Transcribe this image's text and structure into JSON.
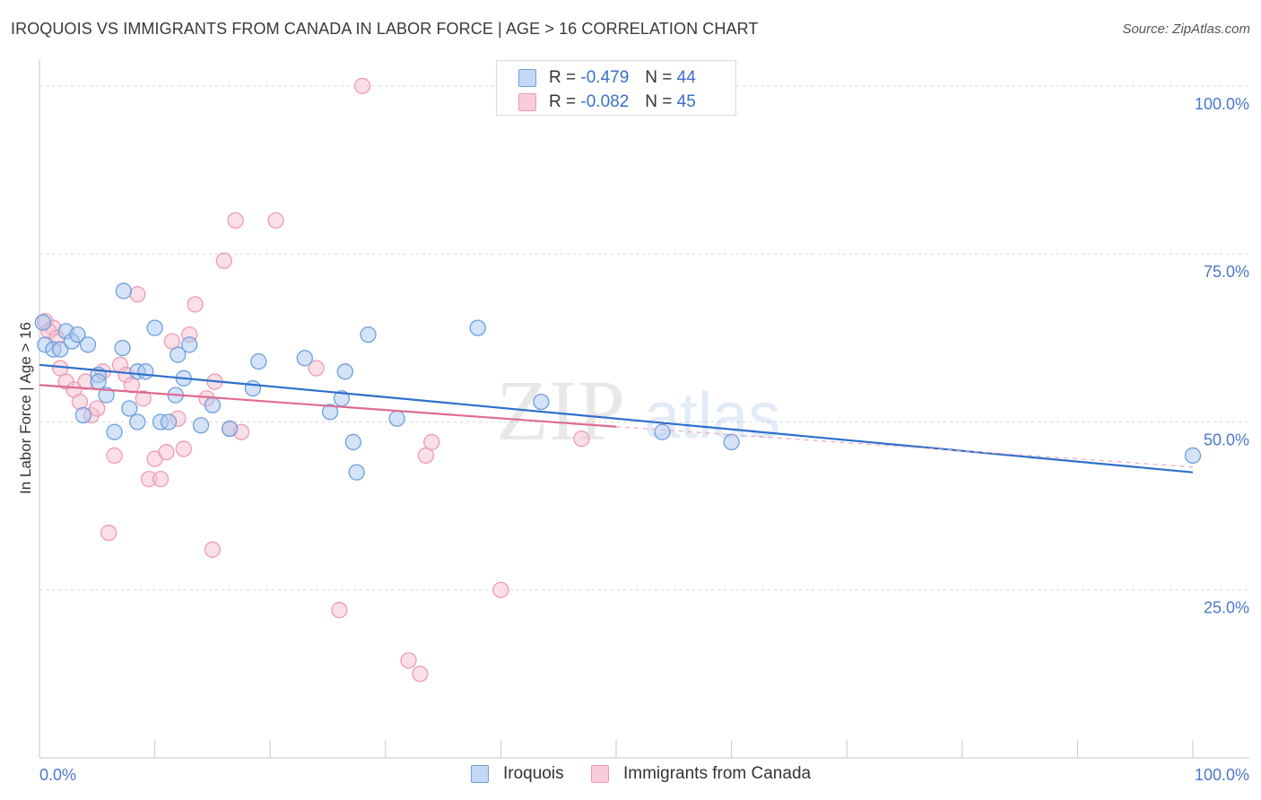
{
  "header": {
    "title": "IROQUOIS VS IMMIGRANTS FROM CANADA IN LABOR FORCE | AGE > 16 CORRELATION CHART",
    "source": "Source: ZipAtlas.com"
  },
  "legend": {
    "rows": [
      {
        "r_label": "R =",
        "r_value": "-0.479",
        "n_label": "N =",
        "n_value": "44"
      },
      {
        "r_label": "R =",
        "r_value": "-0.082",
        "n_label": "N =",
        "n_value": "45"
      }
    ]
  },
  "colors": {
    "blue_fill": "#a9c8f0",
    "blue_stroke": "#6f9fdc",
    "blue_line": "#2e6fcc",
    "pink_fill": "#f6bfcf",
    "pink_stroke": "#ee9bb4",
    "pink_line": "#e06a92",
    "tick_text": "#4a78c8",
    "grid": "#d8d8d8"
  },
  "watermark": {
    "zip": "ZIP",
    "atlas": "atlas"
  },
  "chart_data": {
    "type": "scatter",
    "title": "IROQUOIS VS IMMIGRANTS FROM CANADA IN LABOR FORCE | AGE > 16 CORRELATION CHART",
    "xlabel": "",
    "ylabel": "In Labor Force | Age > 16",
    "xlim": [
      0,
      100
    ],
    "ylim": [
      0,
      104
    ],
    "x_tick_labels": [
      "0.0%",
      "100.0%"
    ],
    "y_ticks": [
      {
        "value": 25,
        "label": "25.0%"
      },
      {
        "value": 50,
        "label": "50.0%"
      },
      {
        "value": 75,
        "label": "75.0%"
      },
      {
        "value": 100,
        "label": "100.0%"
      }
    ],
    "series": [
      {
        "name": "Iroquois",
        "r": -0.479,
        "n": 44,
        "trend": {
          "x0": 0,
          "y0": 58.5,
          "x1": 100,
          "y1": 42.5
        },
        "points": [
          [
            0.3,
            64.8
          ],
          [
            0.5,
            61.5
          ],
          [
            1.2,
            60.8
          ],
          [
            1.8,
            60.8
          ],
          [
            2.3,
            63.5
          ],
          [
            2.8,
            62
          ],
          [
            3.3,
            63
          ],
          [
            4.2,
            61.5
          ],
          [
            3.8,
            51
          ],
          [
            5.1,
            57
          ],
          [
            5.1,
            56
          ],
          [
            5.8,
            54
          ],
          [
            6.5,
            48.5
          ],
          [
            7.3,
            69.5
          ],
          [
            7.2,
            61
          ],
          [
            7.8,
            52
          ],
          [
            8.5,
            50
          ],
          [
            8.5,
            57.5
          ],
          [
            9.2,
            57.5
          ],
          [
            10,
            64
          ],
          [
            10.5,
            50
          ],
          [
            11.2,
            50
          ],
          [
            11.8,
            54
          ],
          [
            12,
            60
          ],
          [
            12.5,
            56.5
          ],
          [
            13,
            61.5
          ],
          [
            14,
            49.5
          ],
          [
            15,
            52.5
          ],
          [
            16.5,
            49
          ],
          [
            18.5,
            55
          ],
          [
            19,
            59
          ],
          [
            23,
            59.5
          ],
          [
            25.2,
            51.5
          ],
          [
            26.2,
            53.5
          ],
          [
            26.5,
            57.5
          ],
          [
            27.2,
            47
          ],
          [
            27.5,
            42.5
          ],
          [
            28.5,
            63
          ],
          [
            31,
            50.5
          ],
          [
            38,
            64
          ],
          [
            43.5,
            53
          ],
          [
            54,
            48.5
          ],
          [
            60,
            47
          ],
          [
            100,
            45
          ]
        ]
      },
      {
        "name": "Immigrants from Canada",
        "r": -0.082,
        "n": 45,
        "trend": {
          "x0": 0,
          "y0": 55.5,
          "x1": 50,
          "y1": 49.3
        },
        "trend_ext": {
          "x0": 50,
          "y0": 49.3,
          "x1": 100,
          "y1": 43.3
        },
        "points": [
          [
            0.5,
            65
          ],
          [
            1.2,
            64
          ],
          [
            1.8,
            58
          ],
          [
            2.3,
            56
          ],
          [
            3,
            54.8
          ],
          [
            3.5,
            53
          ],
          [
            4,
            56
          ],
          [
            4.5,
            51
          ],
          [
            5,
            52
          ],
          [
            5.5,
            57.5
          ],
          [
            6,
            33.5
          ],
          [
            6.5,
            45
          ],
          [
            7,
            58.5
          ],
          [
            7.5,
            57
          ],
          [
            8,
            55.5
          ],
          [
            8.5,
            69
          ],
          [
            9,
            53.5
          ],
          [
            9.5,
            41.5
          ],
          [
            10,
            44.5
          ],
          [
            10.5,
            41.5
          ],
          [
            11,
            45.5
          ],
          [
            11.5,
            62
          ],
          [
            12,
            50.5
          ],
          [
            12.5,
            46
          ],
          [
            13,
            63
          ],
          [
            13.5,
            67.5
          ],
          [
            14.5,
            53.5
          ],
          [
            15,
            31
          ],
          [
            15.2,
            56
          ],
          [
            16,
            74
          ],
          [
            16.5,
            49
          ],
          [
            17,
            80
          ],
          [
            17.5,
            48.5
          ],
          [
            20.5,
            80
          ],
          [
            24,
            58
          ],
          [
            26,
            22
          ],
          [
            28,
            100
          ],
          [
            32,
            14.5
          ],
          [
            33,
            12.5
          ],
          [
            33.5,
            45
          ],
          [
            34,
            47
          ],
          [
            40,
            25
          ],
          [
            47,
            47.5
          ],
          [
            0.8,
            63.5
          ],
          [
            1.5,
            62.5
          ]
        ]
      }
    ],
    "legend_position": "top-center"
  }
}
